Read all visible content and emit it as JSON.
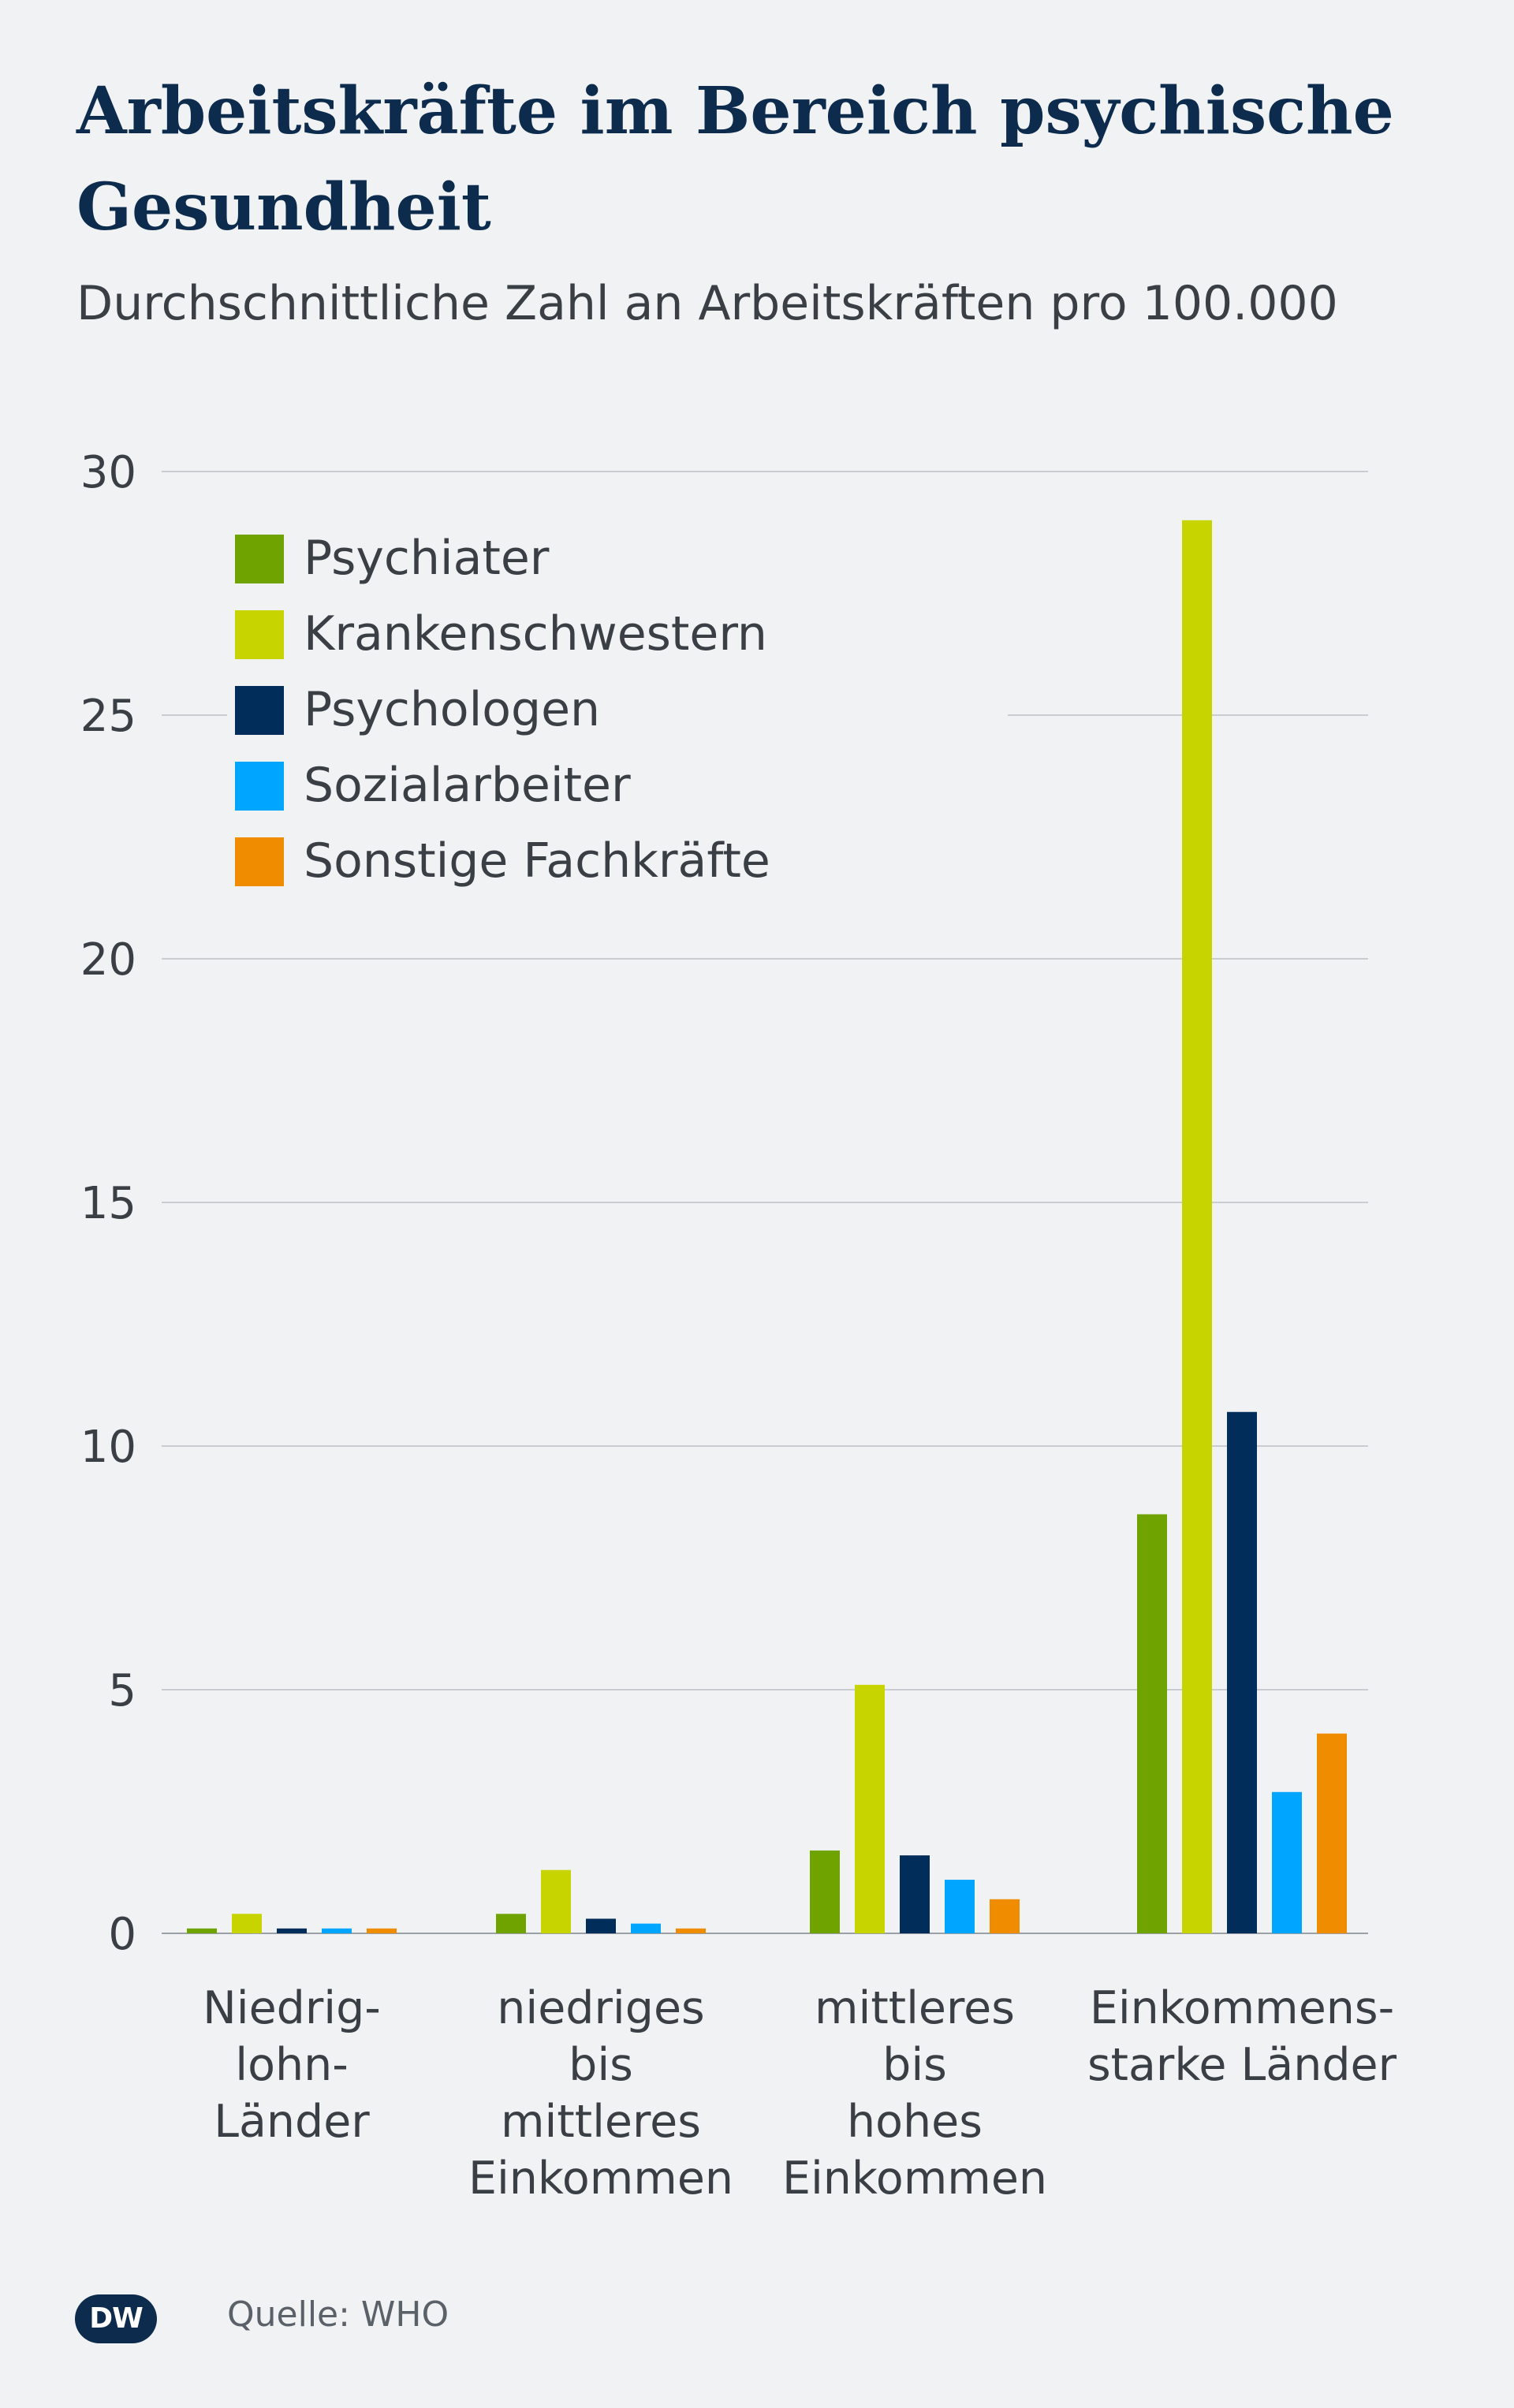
{
  "header": {
    "title": "Arbeitskräfte im Bereich psychische Gesundheit",
    "subtitle": "Durchschnittliche Zahl an Arbeitskräften pro 100.000"
  },
  "footer": {
    "logo_text": "DW",
    "source": "Quelle: WHO"
  },
  "colors": {
    "Psychiater": "#6fa300",
    "Krankenschwestern": "#c8d400",
    "Psychologen": "#002d5a",
    "Sozialarbeiter": "#00a5ff",
    "Sonstige Fachkräfte": "#f08c00",
    "grid": "#c9ccd0",
    "background": "#f0f2f4"
  },
  "chart_data": {
    "type": "bar",
    "title": "Arbeitskräfte im Bereich psychische Gesundheit",
    "subtitle": "Durchschnittliche Zahl an Arbeitskräften pro 100.000",
    "categories": [
      [
        "Niedrig-",
        "lohn-",
        "Länder"
      ],
      [
        "niedriges",
        "bis",
        "mittleres",
        "Einkommen"
      ],
      [
        "mittleres",
        "bis",
        "hohes",
        "Einkommen"
      ],
      [
        "Einkommens-",
        "starke Länder"
      ]
    ],
    "series": [
      {
        "name": "Psychiater",
        "values": [
          0.1,
          0.4,
          1.7,
          8.6
        ]
      },
      {
        "name": "Krankenschwestern",
        "values": [
          0.4,
          1.3,
          5.1,
          29.0
        ]
      },
      {
        "name": "Psychologen",
        "values": [
          0.1,
          0.3,
          1.6,
          10.7
        ]
      },
      {
        "name": "Sozialarbeiter",
        "values": [
          0.1,
          0.2,
          1.1,
          2.9
        ]
      },
      {
        "name": "Sonstige Fachkräfte",
        "values": [
          0.1,
          0.1,
          0.7,
          4.1
        ]
      }
    ],
    "yticks": [
      0,
      5,
      10,
      15,
      20,
      25,
      30
    ],
    "ylim": [
      0,
      30
    ],
    "grid": true,
    "legend_position": "top-left"
  }
}
